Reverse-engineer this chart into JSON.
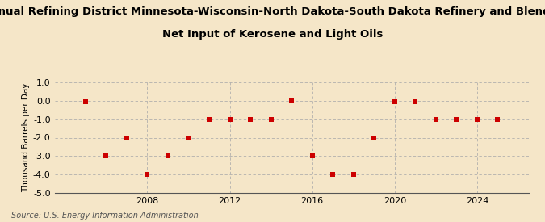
{
  "title_line1": "Annual Refining District Minnesota-Wisconsin-North Dakota-South Dakota Refinery and Blender",
  "title_line2": "Net Input of Kerosene and Light Oils",
  "ylabel": "Thousand Barrels per Day",
  "source": "Source: U.S. Energy Information Administration",
  "background_color": "#f5e6c8",
  "years": [
    2005,
    2006,
    2007,
    2008,
    2009,
    2010,
    2011,
    2012,
    2013,
    2014,
    2015,
    2016,
    2017,
    2018,
    2019,
    2020,
    2021,
    2022,
    2023,
    2024,
    2025
  ],
  "values": [
    -0.05,
    -3.0,
    -2.0,
    -4.0,
    -3.0,
    -2.0,
    -1.0,
    -1.0,
    -1.0,
    -1.0,
    0.0,
    -3.0,
    -4.0,
    -4.0,
    -2.0,
    -0.05,
    -0.05,
    -1.0,
    -1.0,
    -1.0,
    -1.0
  ],
  "ylim": [
    -5.0,
    1.0
  ],
  "yticks": [
    1.0,
    0.0,
    -1.0,
    -2.0,
    -3.0,
    -4.0,
    -5.0
  ],
  "xticks": [
    2008,
    2012,
    2016,
    2020,
    2024
  ],
  "xlim": [
    2003.5,
    2026.5
  ],
  "marker_color": "#cc0000",
  "marker_size": 4,
  "grid_color": "#aaaaaa",
  "title_fontsize": 9.5,
  "label_fontsize": 7.5,
  "tick_fontsize": 8,
  "source_fontsize": 7
}
